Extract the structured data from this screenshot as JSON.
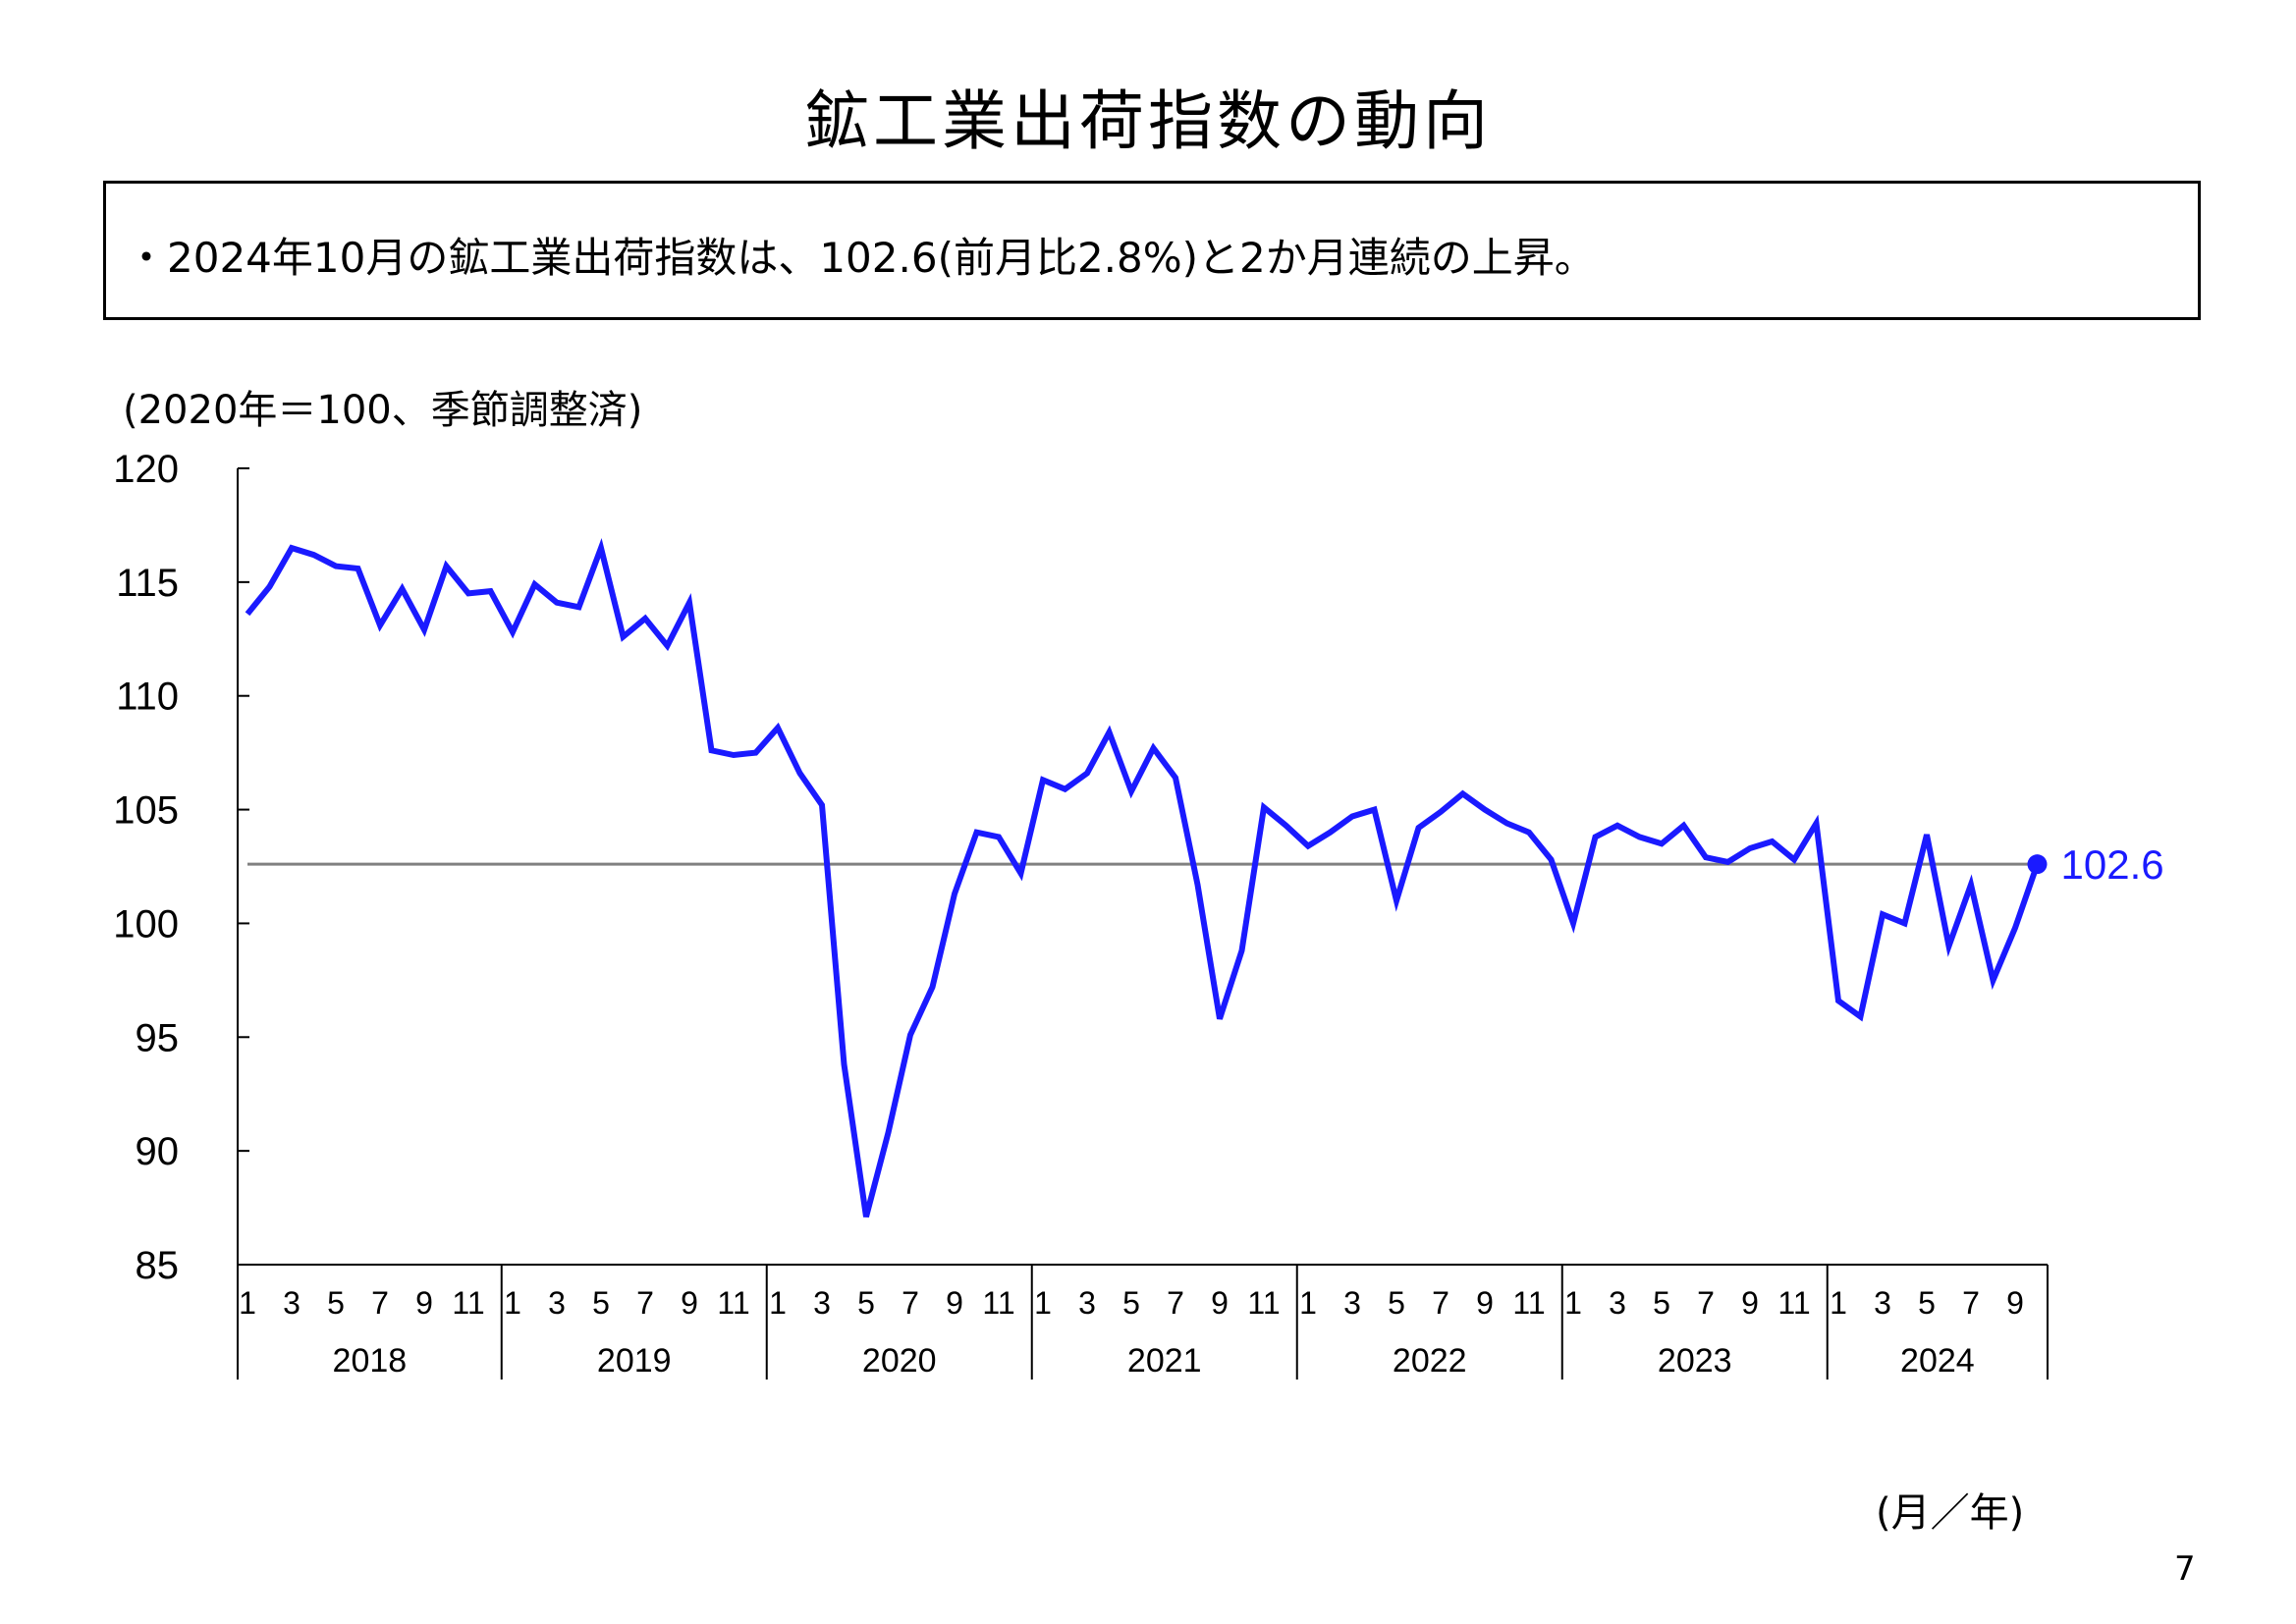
{
  "page": {
    "title": "鉱工業出荷指数の動向",
    "summary": "・2024年10月の鉱工業出荷指数は、102.6(前月比2.8%)と2か月連続の上昇。",
    "unit_note": "(2020年＝100、季節調整済)",
    "x_unit": "(月／年)",
    "page_number": "7"
  },
  "chart_data": {
    "type": "line",
    "title": "",
    "ylim": [
      85,
      120
    ],
    "y_ticks": [
      "85",
      "90",
      "95",
      "100",
      "105",
      "110",
      "115",
      "120"
    ],
    "month_ticks": [
      "1",
      "3",
      "5",
      "7",
      "9",
      "11"
    ],
    "years": [
      "2018",
      "2019",
      "2020",
      "2021",
      "2022",
      "2023",
      "2024"
    ],
    "reference_value": 102.6,
    "last_value_label": "102.6",
    "colors": {
      "line": "#1a1aff",
      "reference": "#808080",
      "axis": "#000000"
    },
    "series": [
      {
        "values": [
          113.6,
          114.8,
          116.5,
          116.2,
          115.7,
          115.6,
          113.1,
          114.7,
          112.9,
          115.7,
          114.5,
          114.6,
          112.8,
          114.9,
          114.1,
          113.9,
          116.5,
          112.6,
          113.4,
          112.2,
          114.1,
          107.6,
          107.4,
          107.5,
          108.6,
          106.6,
          105.2,
          93.8,
          87.1,
          90.8,
          95.1,
          97.2,
          101.3,
          104.0,
          103.8,
          102.2,
          106.3,
          105.9,
          106.6,
          108.4,
          105.8,
          107.7,
          106.4,
          101.7,
          95.8,
          98.8,
          105.1,
          104.3,
          103.4,
          104.0,
          104.7,
          105.0,
          101.0,
          104.2,
          104.9,
          105.7,
          105.0,
          104.4,
          104.0,
          102.8,
          100.0,
          103.8,
          104.3,
          103.8,
          103.5,
          104.3,
          102.9,
          102.7,
          103.3,
          103.6,
          102.8,
          104.4,
          96.6,
          95.9,
          100.4,
          100.0,
          103.9,
          99.0,
          101.7,
          97.5,
          99.8,
          102.6
        ]
      }
    ]
  }
}
